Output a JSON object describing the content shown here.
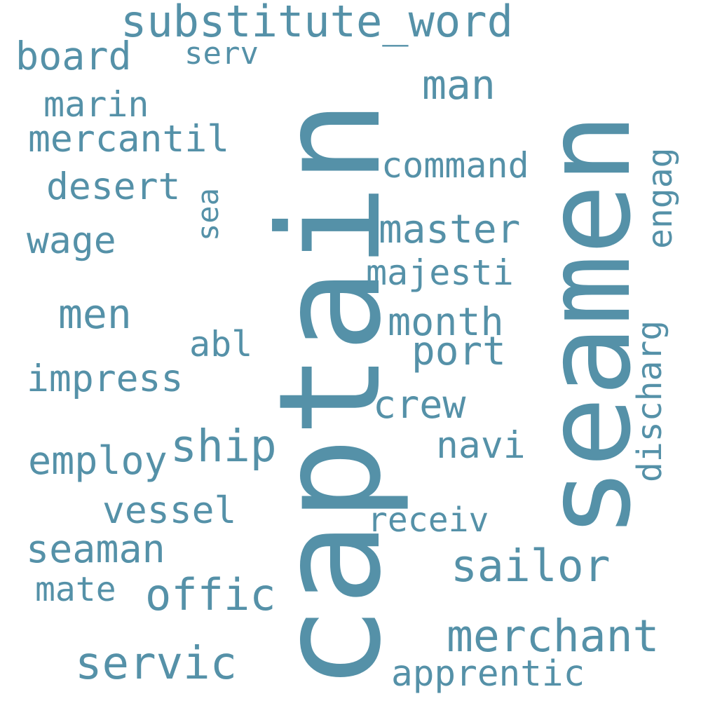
{
  "word_color": "#5591a8",
  "background": "#ffffff",
  "words": [
    {
      "text": "captain"
    },
    {
      "text": "seamen"
    },
    {
      "text": "substitute_word"
    },
    {
      "text": "board"
    },
    {
      "text": "serv"
    },
    {
      "text": "marin"
    },
    {
      "text": "mercantil"
    },
    {
      "text": "desert"
    },
    {
      "text": "sea"
    },
    {
      "text": "wage"
    },
    {
      "text": "men"
    },
    {
      "text": "abl"
    },
    {
      "text": "impress"
    },
    {
      "text": "ship"
    },
    {
      "text": "employ"
    },
    {
      "text": "vessel"
    },
    {
      "text": "seaman"
    },
    {
      "text": "mate"
    },
    {
      "text": "offic"
    },
    {
      "text": "servic"
    },
    {
      "text": "man"
    },
    {
      "text": "command"
    },
    {
      "text": "master"
    },
    {
      "text": "majesti"
    },
    {
      "text": "month"
    },
    {
      "text": "port"
    },
    {
      "text": "crew"
    },
    {
      "text": "navi"
    },
    {
      "text": "receiv"
    },
    {
      "text": "sailor"
    },
    {
      "text": "merchant"
    },
    {
      "text": "apprentic"
    },
    {
      "text": "engag"
    },
    {
      "text": "discharg"
    }
  ]
}
